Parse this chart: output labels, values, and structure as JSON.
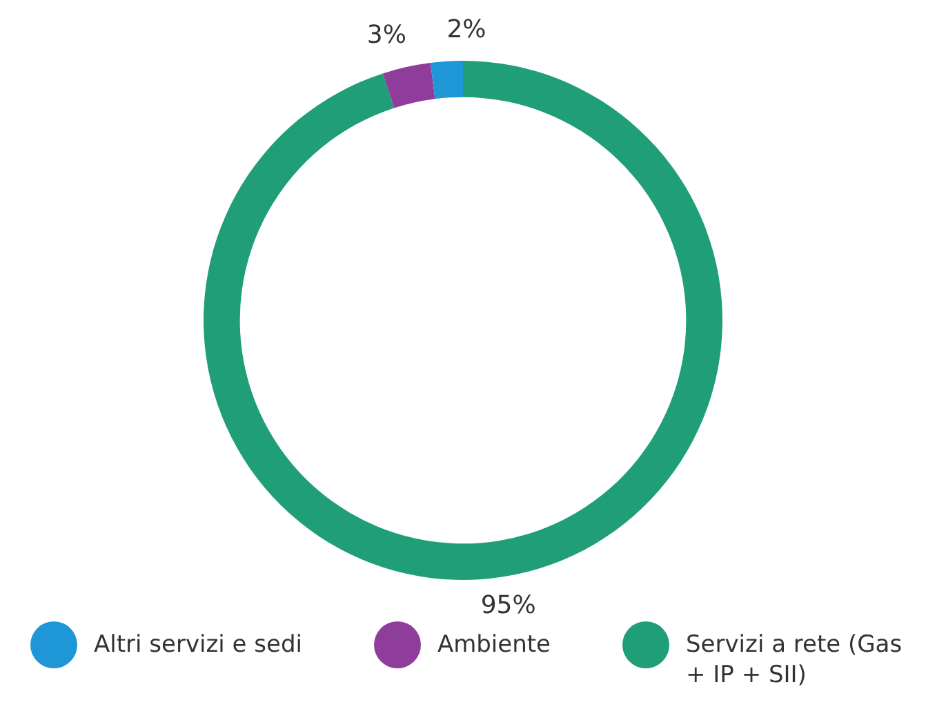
{
  "chart_data": {
    "type": "donut",
    "categories": [
      "Altri servizi e sedi",
      "Ambiente",
      "Servizi a rete (Gas + IP + SII)"
    ],
    "values": [
      2,
      3,
      95
    ],
    "colors": [
      "#1f96d6",
      "#8e3d9b",
      "#1f9e78"
    ],
    "value_labels": [
      "2%",
      "3%",
      "95%"
    ],
    "legend": "bottom"
  }
}
